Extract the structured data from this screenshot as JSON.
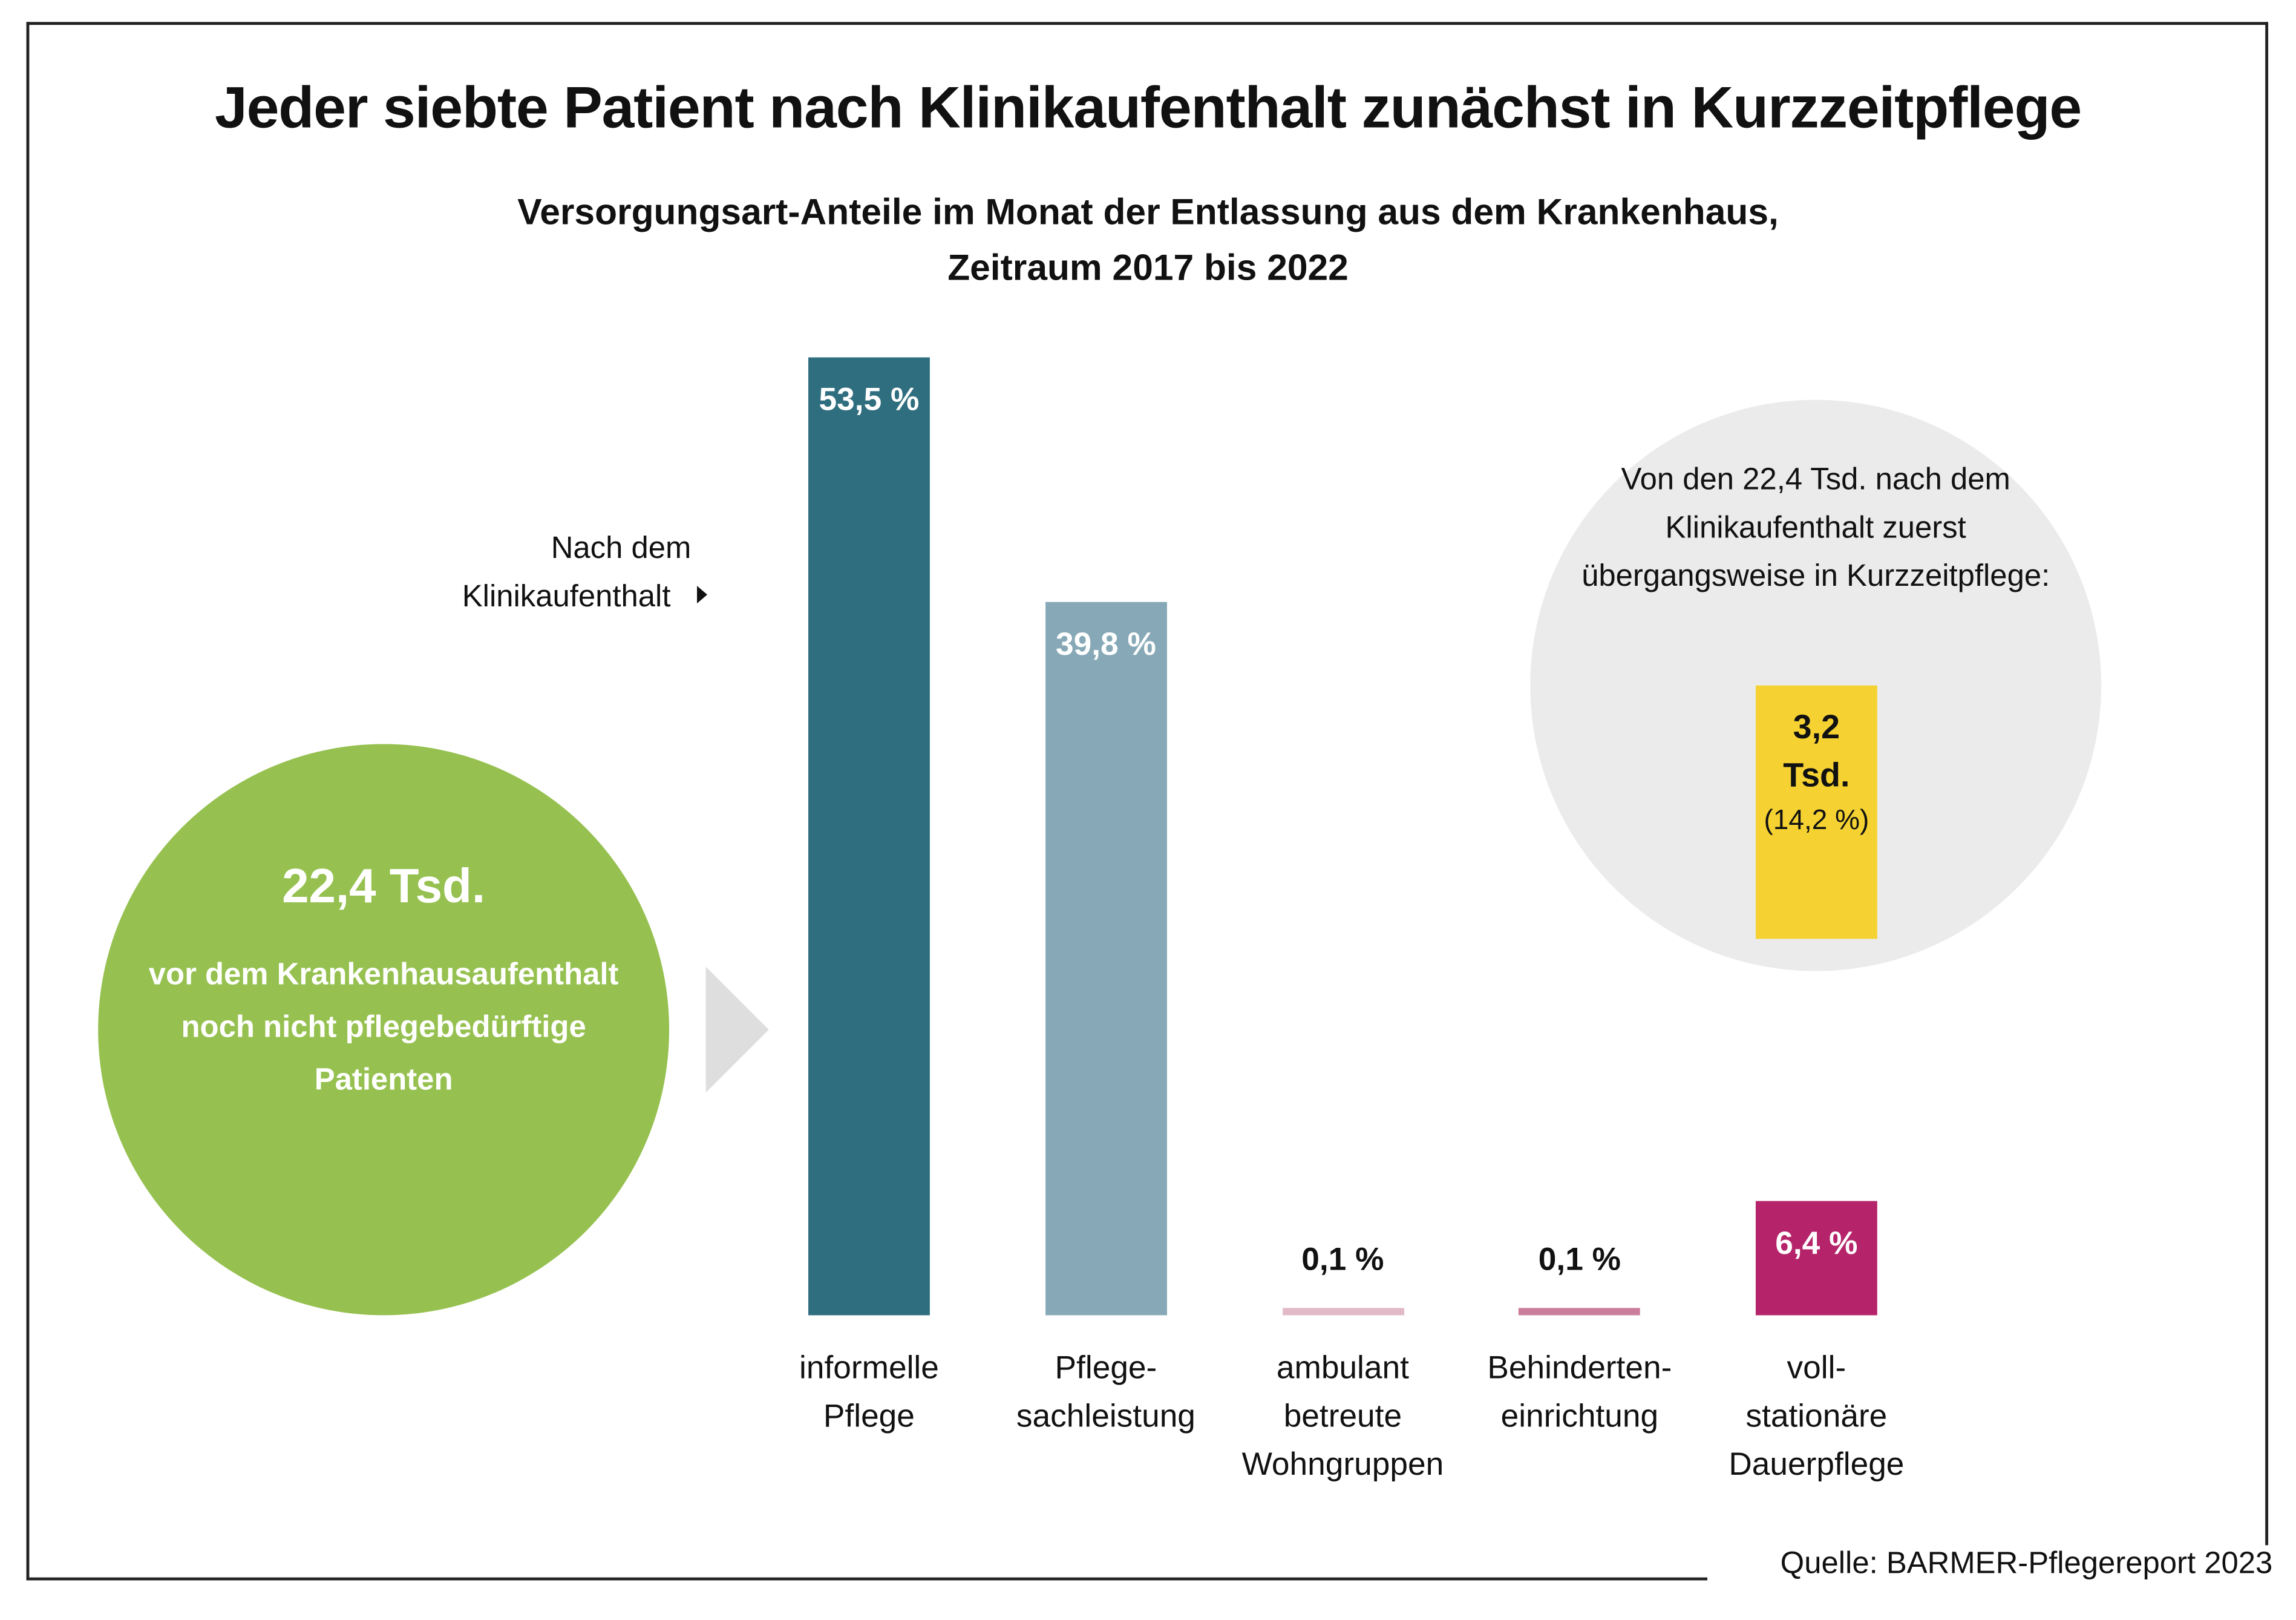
{
  "title": "Jeder siebte Patient nach Klinikaufenthalt zunächst in Kurzzeitpflege",
  "subtitle_line1": "Versorgungsart-Anteile im Monat der Entlassung aus dem Krankenhaus,",
  "subtitle_line2": "Zeitraum 2017 bis 2022",
  "green_circle": {
    "value": "22,4 Tsd.",
    "text": "vor dem Krankenhausaufenthalt noch nicht pflegebedürftige Patienten",
    "color": "#96c150"
  },
  "note": {
    "line1": "Nach dem",
    "line2": "Klinikaufenthalt"
  },
  "gray_circle": {
    "text": "Von den 22,4 Tsd. nach dem Klinikaufenthalt zuerst übergangsweise in Kurzzeitpflege:",
    "value_line1": "3,2",
    "value_line2": "Tsd.",
    "percent": "(14,2 %)",
    "box_color": "#f5d232"
  },
  "source": "Quelle: BARMER-Pflegereport 2023",
  "chart_data": {
    "type": "bar",
    "categories": [
      "informelle Pflege",
      "Pflege-sachleistung",
      "ambulant betreute Wohngruppen",
      "Behinderten-einrichtung",
      "voll-stationäre Dauerpflege"
    ],
    "category_lines": [
      [
        "informelle",
        "Pflege"
      ],
      [
        "Pflege-",
        "sachleistung"
      ],
      [
        "ambulant",
        "betreute",
        "Wohngruppen"
      ],
      [
        "Behinderten-",
        "einrichtung"
      ],
      [
        "voll-",
        "stationäre",
        "Dauerpflege"
      ]
    ],
    "values": [
      53.5,
      39.8,
      0.1,
      0.1,
      6.4
    ],
    "labels": [
      "53,5 %",
      "39,8 %",
      "0,1 %",
      "0,1 %",
      "6,4 %"
    ],
    "colors": [
      "#2f6e7e",
      "#87a9b7",
      "#e1b9c7",
      "#cb7e9b",
      "#b5246a"
    ],
    "unit": "%",
    "grid": false
  }
}
